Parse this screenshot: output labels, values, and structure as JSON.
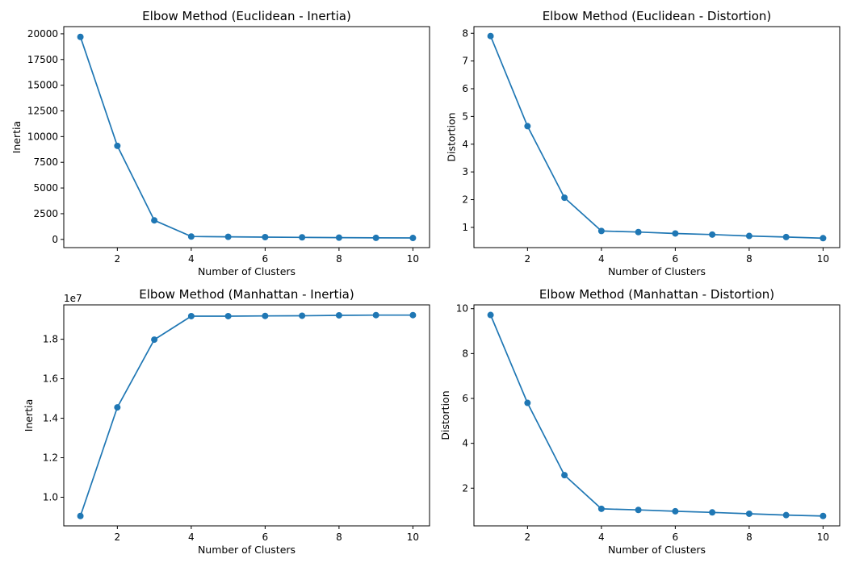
{
  "chart_data": [
    {
      "type": "line",
      "title": "Elbow Method (Euclidean - Inertia)",
      "xlabel": "Number of Clusters",
      "ylabel": "Inertia",
      "x": [
        1,
        2,
        3,
        4,
        5,
        6,
        7,
        8,
        9,
        10
      ],
      "y": [
        19700,
        9100,
        1850,
        280,
        250,
        220,
        200,
        170,
        150,
        140
      ],
      "xlim": [
        0.55,
        10.45
      ],
      "ylim": [
        -800,
        20700
      ],
      "xticks": [
        2,
        4,
        6,
        8,
        10
      ],
      "yticks": [
        0,
        2500,
        5000,
        7500,
        10000,
        12500,
        15000,
        17500,
        20000
      ],
      "ytick_labels": [
        "0",
        "2500",
        "5000",
        "7500",
        "10000",
        "12500",
        "15000",
        "17500",
        "20000"
      ],
      "offset_label": "",
      "marker": "circle",
      "grid": false,
      "color": "#1f77b4"
    },
    {
      "type": "line",
      "title": "Elbow Method (Euclidean - Distortion)",
      "xlabel": "Number of Clusters",
      "ylabel": "Distortion",
      "x": [
        1,
        2,
        3,
        4,
        5,
        6,
        7,
        8,
        9,
        10
      ],
      "y": [
        7.9,
        4.65,
        2.07,
        0.87,
        0.83,
        0.78,
        0.74,
        0.69,
        0.65,
        0.61
      ],
      "xlim": [
        0.55,
        10.45
      ],
      "ylim": [
        0.27,
        8.24
      ],
      "xticks": [
        2,
        4,
        6,
        8,
        10
      ],
      "yticks": [
        1,
        2,
        3,
        4,
        5,
        6,
        7,
        8
      ],
      "ytick_labels": [
        "1",
        "2",
        "3",
        "4",
        "5",
        "6",
        "7",
        "8"
      ],
      "offset_label": "",
      "marker": "circle",
      "grid": false,
      "color": "#1f77b4"
    },
    {
      "type": "line",
      "title": "Elbow Method (Manhattan - Inertia)",
      "xlabel": "Number of Clusters",
      "ylabel": "Inertia",
      "x": [
        1,
        2,
        3,
        4,
        5,
        6,
        7,
        8,
        9,
        10
      ],
      "y": [
        9.05,
        14.55,
        17.98,
        19.17,
        19.17,
        19.18,
        19.19,
        19.21,
        19.22,
        19.22
      ],
      "xlim": [
        0.55,
        10.45
      ],
      "ylim": [
        8.55,
        19.74
      ],
      "xticks": [
        2,
        4,
        6,
        8,
        10
      ],
      "yticks": [
        10,
        12,
        14,
        16,
        18
      ],
      "ytick_labels": [
        "1.0",
        "1.2",
        "1.4",
        "1.6",
        "1.8"
      ],
      "offset_label": "1e7",
      "marker": "circle",
      "grid": false,
      "color": "#1f77b4"
    },
    {
      "type": "line",
      "title": "Elbow Method (Manhattan - Distortion)",
      "xlabel": "Number of Clusters",
      "ylabel": "Distortion",
      "x": [
        1,
        2,
        3,
        4,
        5,
        6,
        7,
        8,
        9,
        10
      ],
      "y": [
        9.72,
        5.8,
        2.58,
        1.08,
        1.03,
        0.97,
        0.92,
        0.86,
        0.8,
        0.76
      ],
      "xlim": [
        0.55,
        10.45
      ],
      "ylim": [
        0.32,
        10.17
      ],
      "xticks": [
        2,
        4,
        6,
        8,
        10
      ],
      "yticks": [
        2,
        4,
        6,
        8,
        10
      ],
      "ytick_labels": [
        "2",
        "4",
        "6",
        "8",
        "10"
      ],
      "offset_label": "",
      "marker": "circle",
      "grid": false,
      "color": "#1f77b4"
    }
  ]
}
